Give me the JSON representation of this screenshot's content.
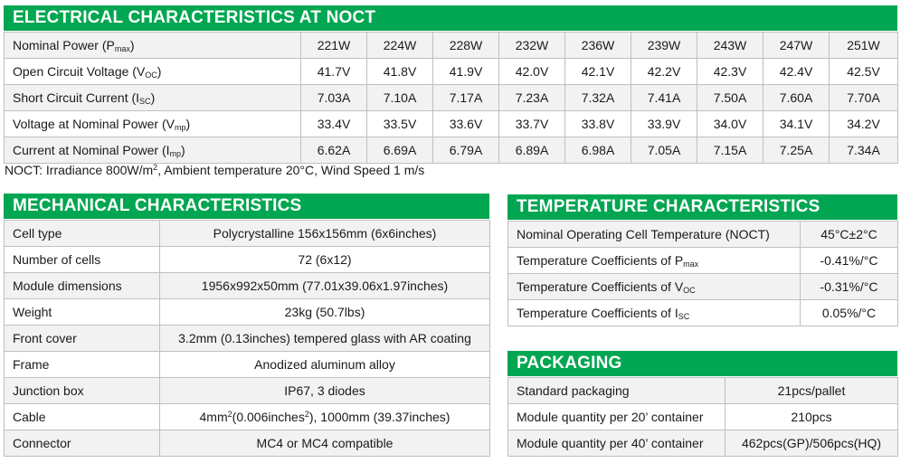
{
  "electrical": {
    "title": "ELECTRICAL CHARACTERISTICS AT NOCT",
    "rows": [
      {
        "label": "Nominal Power (P",
        "sub": "max",
        "after": ")",
        "values": [
          "221W",
          "224W",
          "228W",
          "232W",
          "236W",
          "239W",
          "243W",
          "247W",
          "251W"
        ]
      },
      {
        "label": "Open Circuit Voltage (V",
        "sub": "OC",
        "after": ")",
        "values": [
          "41.7V",
          "41.8V",
          "41.9V",
          "42.0V",
          "42.1V",
          "42.2V",
          "42.3V",
          "42.4V",
          "42.5V"
        ]
      },
      {
        "label": "Short Circuit Current (I",
        "sub": "SC",
        "after": ")",
        "values": [
          "7.03A",
          "7.10A",
          "7.17A",
          "7.23A",
          "7.32A",
          "7.41A",
          "7.50A",
          "7.60A",
          "7.70A"
        ]
      },
      {
        "label": "Voltage at Nominal Power (V",
        "sub": "mp",
        "after": ")",
        "values": [
          "33.4V",
          "33.5V",
          "33.6V",
          "33.7V",
          "33.8V",
          "33.9V",
          "34.0V",
          "34.1V",
          "34.2V"
        ]
      },
      {
        "label": "Current at Nominal Power (I",
        "sub": "mp",
        "after": ")",
        "values": [
          "6.62A",
          "6.69A",
          "6.79A",
          "6.89A",
          "6.98A",
          "7.05A",
          "7.15A",
          "7.25A",
          "7.34A"
        ]
      }
    ],
    "note": {
      "a": "NOCT: Irradiance 800W/m",
      "sup": "2",
      "b": ", Ambient temperature 20°C, Wind Speed 1 m/s"
    }
  },
  "mechanical": {
    "title": "MECHANICAL CHARACTERISTICS",
    "rows": [
      {
        "label": "Cell type",
        "value": "Polycrystalline 156x156mm (6x6inches)"
      },
      {
        "label": "Number of cells",
        "value": "72 (6x12)"
      },
      {
        "label": "Module dimensions",
        "value": "1956x992x50mm (77.01x39.06x1.97inches)"
      },
      {
        "label": "Weight",
        "value": "23kg (50.7lbs)"
      },
      {
        "label": "Front cover",
        "value": "3.2mm (0.13inches) tempered glass with AR coating"
      },
      {
        "label": "Frame",
        "value": "Anodized aluminum alloy"
      },
      {
        "label": "Junction box",
        "value": "IP67, 3 diodes"
      },
      {
        "label": "Cable",
        "value_a": "4mm",
        "value_sup1": "2",
        "value_b": "(0.006inches",
        "value_sup2": "2",
        "value_c": "), 1000mm (39.37inches)"
      },
      {
        "label": "Connector",
        "value": "MC4 or MC4 compatible"
      }
    ]
  },
  "temperature": {
    "title": "TEMPERATURE CHARACTERISTICS",
    "rows": [
      {
        "label": "Nominal Operating Cell Temperature (NOCT)",
        "sub": "",
        "value": "45°C±2°C"
      },
      {
        "label": "Temperature Coefficients of P",
        "sub": "max",
        "value": "-0.41%/°C"
      },
      {
        "label": "Temperature Coefficients of V",
        "sub": "OC",
        "value": "-0.31%/°C"
      },
      {
        "label": "Temperature Coefficients of I",
        "sub": "SC",
        "value": "0.05%/°C"
      }
    ]
  },
  "packaging": {
    "title": "PACKAGING",
    "rows": [
      {
        "label": "Standard packaging",
        "value": "21pcs/pallet"
      },
      {
        "label": "Module quantity per 20’ container",
        "value": "210pcs"
      },
      {
        "label": "Module quantity per 40’ container",
        "value": "462pcs(GP)/506pcs(HQ)"
      }
    ]
  },
  "colors": {
    "banner": "#00a651",
    "row_shade": "#f2f2f2",
    "border": "#bfbfbf"
  }
}
